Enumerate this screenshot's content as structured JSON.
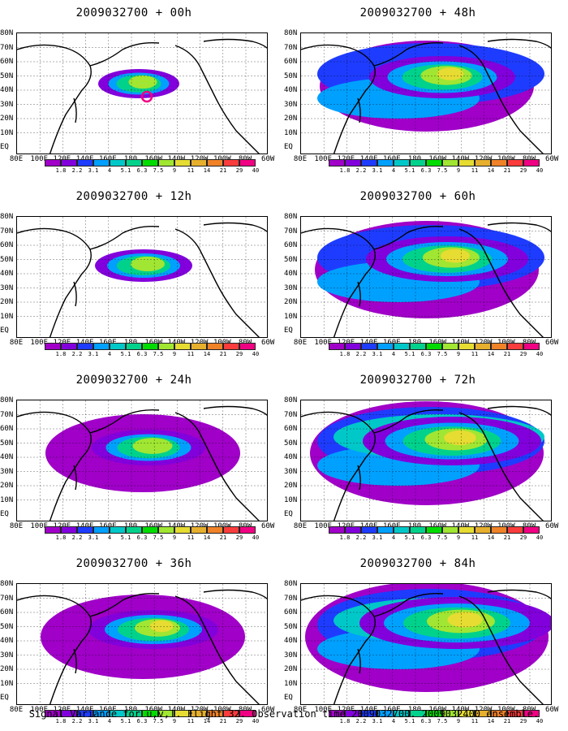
{
  "panels": [
    {
      "title": "2009032700 + 00h",
      "col": 0,
      "row": 0,
      "level": 0
    },
    {
      "title": "2009032700 + 48h",
      "col": 1,
      "row": 0,
      "level": 4
    },
    {
      "title": "2009032700 + 12h",
      "col": 0,
      "row": 1,
      "level": 1
    },
    {
      "title": "2009032700 + 60h",
      "col": 1,
      "row": 1,
      "level": 5
    },
    {
      "title": "2009032700 + 24h",
      "col": 0,
      "row": 2,
      "level": 2
    },
    {
      "title": "2009032700 + 72h",
      "col": 1,
      "row": 2,
      "level": 6
    },
    {
      "title": "2009032700 + 36h",
      "col": 0,
      "row": 3,
      "level": 3
    },
    {
      "title": "2009032700 + 84h",
      "col": 1,
      "row": 3,
      "level": 7
    }
  ],
  "lat_labels": [
    "80N",
    "70N",
    "60N",
    "50N",
    "40N",
    "30N",
    "20N",
    "10N",
    "EQ"
  ],
  "lon_labels": [
    "80E",
    "100E",
    "120E",
    "140E",
    "160E",
    "180",
    "160W",
    "140W",
    "120W",
    "100W",
    "80W",
    "60W"
  ],
  "colorbar": {
    "labels": [
      "1.8",
      "2.2",
      "3.1",
      "4",
      "5.1",
      "6.3",
      "7.5",
      "9",
      "11",
      "14",
      "21",
      "29",
      "40"
    ],
    "colors": [
      "#a000c8",
      "#8200dc",
      "#1e3cff",
      "#00a0ff",
      "#00c8c8",
      "#00d28c",
      "#00dc00",
      "#a0e632",
      "#e6dc32",
      "#e6af2d",
      "#f08228",
      "#fa3c3c",
      "#f00082"
    ]
  },
  "caption": "Signal Variance for u,v,T. Flight 32. Observation time 2009032700. 2009032400 ensemble."
}
